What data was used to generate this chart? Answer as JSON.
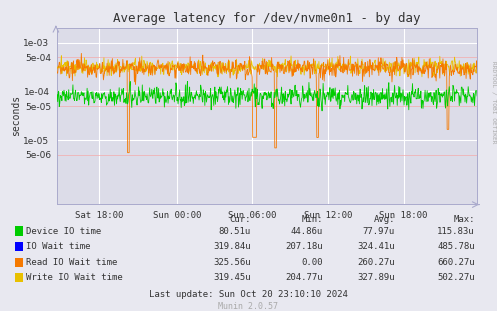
{
  "title": "Average latency for /dev/nvme0n1 - by day",
  "ylabel": "seconds",
  "background_color": "#e8e8f0",
  "plot_bg_color": "#dcdce8",
  "grid_major_color": "#ffffff",
  "grid_minor_color": "#f5aaaa",
  "xtick_labels": [
    "Sat 18:00",
    "Sun 00:00",
    "Sun 06:00",
    "Sun 12:00",
    "Sun 18:00"
  ],
  "xtick_positions": [
    0.1,
    0.285,
    0.465,
    0.645,
    0.825
  ],
  "legend_items": [
    {
      "label": "Device IO time",
      "color": "#00cc00"
    },
    {
      "label": "IO Wait time",
      "color": "#0000ff"
    },
    {
      "label": "Read IO Wait time",
      "color": "#f57900"
    },
    {
      "label": "Write IO Wait time",
      "color": "#e8c000"
    }
  ],
  "stats_header": [
    "Cur:",
    "Min:",
    "Avg:",
    "Max:"
  ],
  "stats_data": [
    [
      "80.51u",
      "44.86u",
      "77.97u",
      "115.83u"
    ],
    [
      "319.84u",
      "207.18u",
      "324.41u",
      "485.78u"
    ],
    [
      "325.56u",
      "0.00",
      "260.27u",
      "660.27u"
    ],
    [
      "319.45u",
      "204.77u",
      "327.89u",
      "502.27u"
    ]
  ],
  "footer": "Last update: Sun Oct 20 23:10:10 2024",
  "munin_version": "Munin 2.0.57",
  "rrdtool_label": "RRDTOOL / TOBI OETIKER",
  "green_base": 8e-05,
  "orange_base": 0.0003,
  "yellow_base": 0.00032
}
